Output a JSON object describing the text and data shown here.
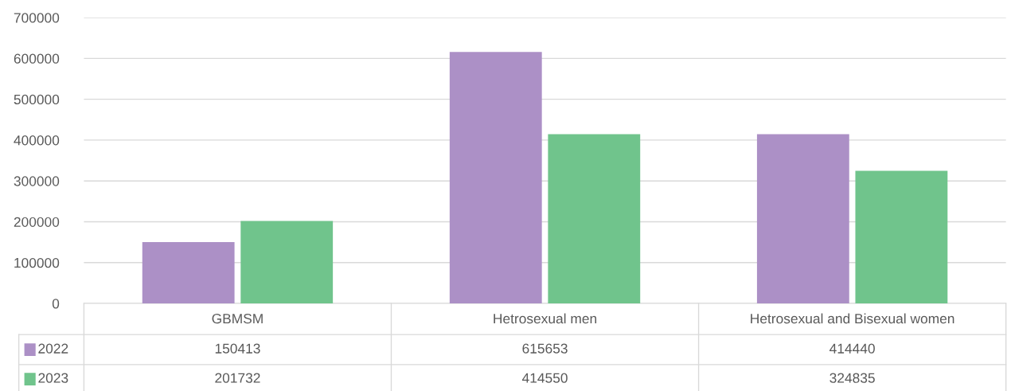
{
  "chart_data": {
    "type": "bar",
    "categories": [
      "GBMSM",
      "Hetrosexual men",
      "Hetrosexual and Bisexual women"
    ],
    "series": [
      {
        "name": "2022",
        "color": "#ac90c6",
        "values": [
          150413,
          615653,
          414440
        ]
      },
      {
        "name": "2023",
        "color": "#70c48c",
        "values": [
          201732,
          414550,
          324835
        ]
      }
    ],
    "ylim": [
      0,
      700000
    ],
    "yticks": [
      0,
      100000,
      200000,
      300000,
      400000,
      500000,
      600000,
      700000
    ],
    "grid": "y",
    "legend": "bottom",
    "data_labels": true
  }
}
